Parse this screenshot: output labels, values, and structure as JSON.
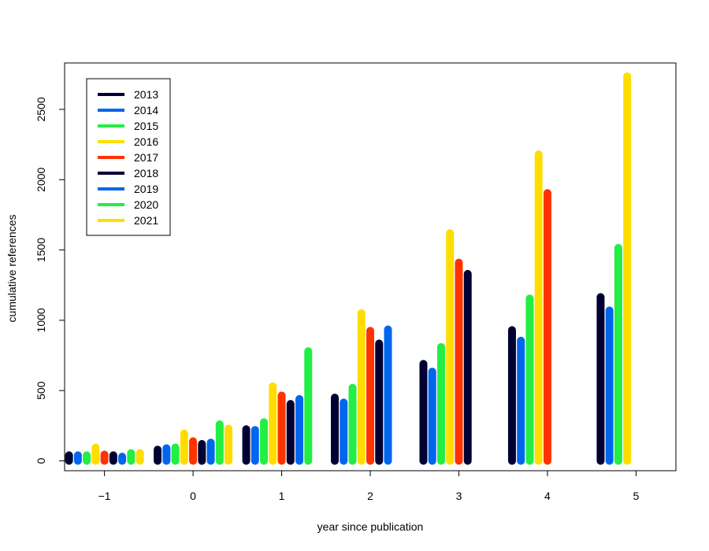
{
  "chart_data": {
    "type": "bar",
    "title": "",
    "xlabel": "year since publication",
    "ylabel": "cumulative references",
    "x_ticks": [
      "−1",
      "0",
      "1",
      "2",
      "3",
      "4",
      "5"
    ],
    "y_ticks": [
      "0",
      "500",
      "1000",
      "1500",
      "2000",
      "2500"
    ],
    "xlim": [
      -1.45,
      5.45
    ],
    "ylim": [
      -70,
      2830
    ],
    "grid": false,
    "legend_position": "top-left",
    "series": [
      {
        "name": "2013",
        "color": "#000033",
        "values": [
          40,
          80,
          225,
          450,
          690,
          930,
          1165
        ]
      },
      {
        "name": "2014",
        "color": "#0066ee",
        "values": [
          40,
          90,
          220,
          415,
          635,
          855,
          1070
        ]
      },
      {
        "name": "2015",
        "color": "#22ee44",
        "values": [
          40,
          95,
          275,
          520,
          810,
          1155,
          1515
        ]
      },
      {
        "name": "2016",
        "color": "#ffdd00",
        "values": [
          95,
          195,
          530,
          1050,
          1620,
          2180,
          2735
        ]
      },
      {
        "name": "2017",
        "color": "#ff3300",
        "values": [
          45,
          140,
          465,
          925,
          1410,
          1905
        ]
      },
      {
        "name": "2018",
        "color": "#000033",
        "values": [
          40,
          120,
          405,
          835,
          1330
        ]
      },
      {
        "name": "2019",
        "color": "#0066ee",
        "values": [
          30,
          130,
          440,
          935
        ]
      },
      {
        "name": "2020",
        "color": "#22ee44",
        "values": [
          55,
          260,
          780
        ]
      },
      {
        "name": "2021",
        "color": "#ffdd00",
        "values": [
          55,
          230
        ]
      }
    ]
  }
}
